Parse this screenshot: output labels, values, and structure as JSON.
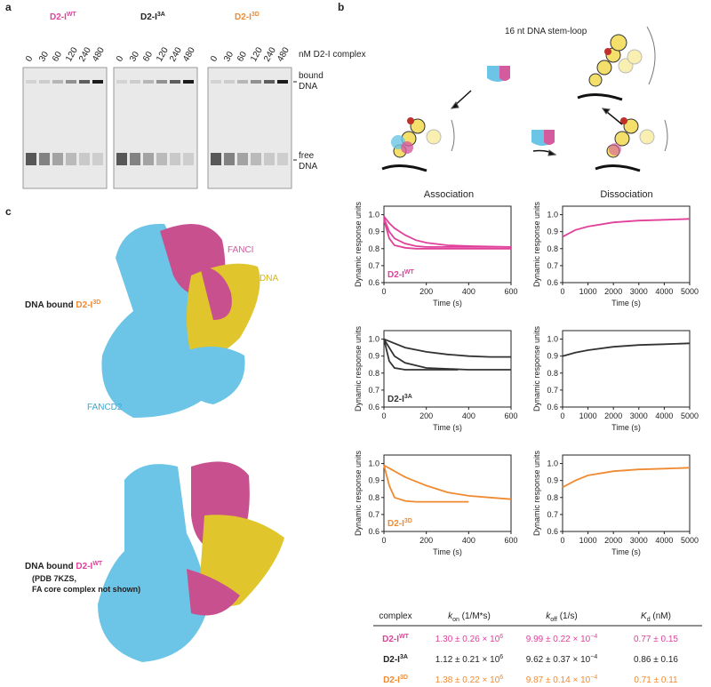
{
  "panel_labels": [
    "a",
    "b",
    "c"
  ],
  "gel": {
    "titles": [
      {
        "text": "D2-I",
        "sup": "WT",
        "color": "#e0409a"
      },
      {
        "text": "D2-I",
        "sup": "3A",
        "color": "#222222"
      },
      {
        "text": "D2-I",
        "sup": "3D",
        "color": "#f08a30"
      }
    ],
    "lanes": [
      "0",
      "30",
      "60",
      "120",
      "240",
      "480"
    ],
    "lane_unit": "nM D2-I complex",
    "bound_label": [
      "bound",
      "DNA"
    ],
    "free_label": [
      "free",
      "DNA"
    ]
  },
  "schematic": {
    "label": "16 nt DNA stem-loop"
  },
  "structures": {
    "fanci": "FANCI",
    "dna": "DNA",
    "fancd2": "FANCD2",
    "top_caption": {
      "text": "DNA bound ",
      "name": "D2-I",
      "sup": "3D"
    },
    "bottom_caption": {
      "text": "DNA bound ",
      "name": "D2-I",
      "sup": "WT",
      "lines": [
        "(PDB 7KZS,",
        "FA core complex not shown)"
      ]
    }
  },
  "columns": {
    "association": "Association",
    "dissociation": "Dissociation"
  },
  "chart_data": [
    {
      "type": "line",
      "xlabel": "Time (s)",
      "ylabel": "Dynamic response units",
      "label": {
        "text": "D2-I",
        "sup": "WT"
      },
      "color": "#e0409a",
      "xlim": [
        0,
        600
      ],
      "xticks": [
        0,
        200,
        400,
        600
      ],
      "ylim": [
        0.6,
        1.05
      ],
      "yticks": [
        0.6,
        0.7,
        0.8,
        0.9,
        {
          "value": 1,
          "label": "1.0"
        }
      ],
      "series": [
        {
          "color": "#e0409a",
          "x": [
            0,
            25,
            50,
            100,
            150,
            200,
            300,
            400,
            600
          ],
          "values": [
            0.97,
            0.86,
            0.82,
            0.805,
            0.8,
            0.8,
            0.8,
            0.8,
            0.8
          ]
        },
        {
          "color": "#e0409a",
          "x": [
            0,
            25,
            50,
            100,
            150,
            200,
            300,
            400,
            600
          ],
          "values": [
            0.98,
            0.9,
            0.86,
            0.83,
            0.815,
            0.81,
            0.81,
            0.81,
            0.81
          ]
        },
        {
          "color": "#e0409a",
          "x": [
            0,
            25,
            50,
            100,
            150,
            200,
            300,
            400,
            600
          ],
          "values": [
            0.99,
            0.95,
            0.92,
            0.88,
            0.85,
            0.835,
            0.82,
            0.815,
            0.81
          ]
        }
      ]
    },
    {
      "type": "line",
      "xlabel": "Time (s)",
      "ylabel": "Dynamic response units",
      "color": "#e0409a",
      "xlim": [
        0,
        5000
      ],
      "xticks": [
        0,
        1000,
        2000,
        3000,
        4000,
        5000
      ],
      "ylim": [
        0.6,
        1.05
      ],
      "yticks": [
        0.6,
        0.7,
        0.8,
        0.9,
        {
          "value": 1,
          "label": "1.0"
        }
      ],
      "series": [
        {
          "color": "#e0409a",
          "x": [
            0,
            500,
            1000,
            2000,
            3000,
            4000,
            5000
          ],
          "values": [
            0.87,
            0.91,
            0.93,
            0.955,
            0.965,
            0.97,
            0.975
          ]
        }
      ]
    },
    {
      "type": "line",
      "xlabel": "Time (s)",
      "ylabel": "Dynamic response units",
      "label": {
        "text": "D2-I",
        "sup": "3A"
      },
      "color": "#333333",
      "xlim": [
        0,
        600
      ],
      "xticks": [
        0,
        200,
        400,
        600
      ],
      "ylim": [
        0.6,
        1.05
      ],
      "yticks": [
        0.6,
        0.7,
        0.8,
        0.9,
        {
          "value": 1,
          "label": "1.0"
        }
      ],
      "series": [
        {
          "color": "#333333",
          "x": [
            0,
            25,
            50,
            100,
            150,
            200,
            350
          ],
          "values": [
            1,
            0.87,
            0.83,
            0.82,
            0.82,
            0.82,
            0.82
          ]
        },
        {
          "color": "#333333",
          "x": [
            0,
            50,
            100,
            200,
            300,
            400,
            600
          ],
          "values": [
            1,
            0.9,
            0.86,
            0.83,
            0.825,
            0.82,
            0.82
          ]
        },
        {
          "color": "#333333",
          "x": [
            0,
            100,
            200,
            300,
            400,
            500,
            600
          ],
          "values": [
            1,
            0.95,
            0.925,
            0.91,
            0.9,
            0.895,
            0.895
          ]
        }
      ]
    },
    {
      "type": "line",
      "xlabel": "Time (s)",
      "ylabel": "Dynamic response units",
      "color": "#333333",
      "xlim": [
        0,
        5000
      ],
      "xticks": [
        0,
        1000,
        2000,
        3000,
        4000,
        5000
      ],
      "ylim": [
        0.6,
        1.05
      ],
      "yticks": [
        0.6,
        0.7,
        0.8,
        0.9,
        {
          "value": 1,
          "label": "1.0"
        }
      ],
      "series": [
        {
          "color": "#333333",
          "x": [
            0,
            500,
            1000,
            2000,
            3000,
            4000,
            5000
          ],
          "values": [
            0.9,
            0.92,
            0.935,
            0.955,
            0.965,
            0.97,
            0.975
          ]
        }
      ]
    },
    {
      "type": "line",
      "xlabel": "Time (s)",
      "ylabel": "Dynamic response units",
      "label": {
        "text": "D2-I",
        "sup": "3D"
      },
      "color": "#f08a30",
      "xlim": [
        0,
        600
      ],
      "xticks": [
        0,
        200,
        400,
        600
      ],
      "ylim": [
        0.6,
        1.05
      ],
      "yticks": [
        0.6,
        0.7,
        0.8,
        0.9,
        {
          "value": 1,
          "label": "1.0"
        }
      ],
      "series": [
        {
          "color": "#f08a30",
          "x": [
            0,
            25,
            50,
            100,
            150,
            200,
            300,
            400
          ],
          "values": [
            0.99,
            0.87,
            0.8,
            0.78,
            0.775,
            0.775,
            0.775,
            0.775
          ]
        },
        {
          "color": "#f08a30",
          "x": [
            0,
            100,
            200,
            300,
            400,
            500,
            600
          ],
          "values": [
            0.99,
            0.92,
            0.87,
            0.83,
            0.81,
            0.8,
            0.79
          ]
        }
      ]
    },
    {
      "type": "line",
      "xlabel": "Time (s)",
      "ylabel": "Dynamic response units",
      "color": "#f08a30",
      "xlim": [
        0,
        5000
      ],
      "xticks": [
        0,
        1000,
        2000,
        3000,
        4000,
        5000
      ],
      "ylim": [
        0.6,
        1.05
      ],
      "yticks": [
        0.6,
        0.7,
        0.8,
        0.9,
        {
          "value": 1,
          "label": "1.0"
        }
      ],
      "series": [
        {
          "color": "#f08a30",
          "x": [
            0,
            500,
            1000,
            2000,
            3000,
            4000,
            5000
          ],
          "values": [
            0.86,
            0.9,
            0.93,
            0.955,
            0.965,
            0.97,
            0.975
          ]
        }
      ]
    }
  ],
  "table": {
    "header": [
      {
        "text": "complex"
      },
      {
        "symbol": "k",
        "sub": "on",
        "unit": " (1/M*s)"
      },
      {
        "symbol": "k",
        "sub": "off",
        "unit": " (1/s)"
      },
      {
        "symbol": "K",
        "sub": "d",
        "unit": " (nM)"
      }
    ],
    "rows": [
      {
        "name": "D2-I",
        "sup": "WT",
        "color": "#e0409a",
        "cells": [
          {
            "text": "1.30 ± 0.26 × 10",
            "exp": "6"
          },
          {
            "text": "9.99 ± 0.22 × 10",
            "exp": "−4"
          },
          {
            "text": "0.77 ± 0.15"
          }
        ]
      },
      {
        "name": "D2-I",
        "sup": "3A",
        "color": "#222222",
        "cells": [
          {
            "text": "1.12 ± 0.21 × 10",
            "exp": "6"
          },
          {
            "text": "9.62 ± 0.37 × 10",
            "exp": "−4"
          },
          {
            "text": "0.86 ± 0.16"
          }
        ]
      },
      {
        "name": "D2-I",
        "sup": "3D",
        "color": "#f08a30",
        "cells": [
          {
            "text": "1.38 ± 0.22 × 10",
            "exp": "6"
          },
          {
            "text": "9.87 ± 0.14 × 10",
            "exp": "−4"
          },
          {
            "text": "0.71 ± 0.11"
          }
        ]
      }
    ]
  }
}
